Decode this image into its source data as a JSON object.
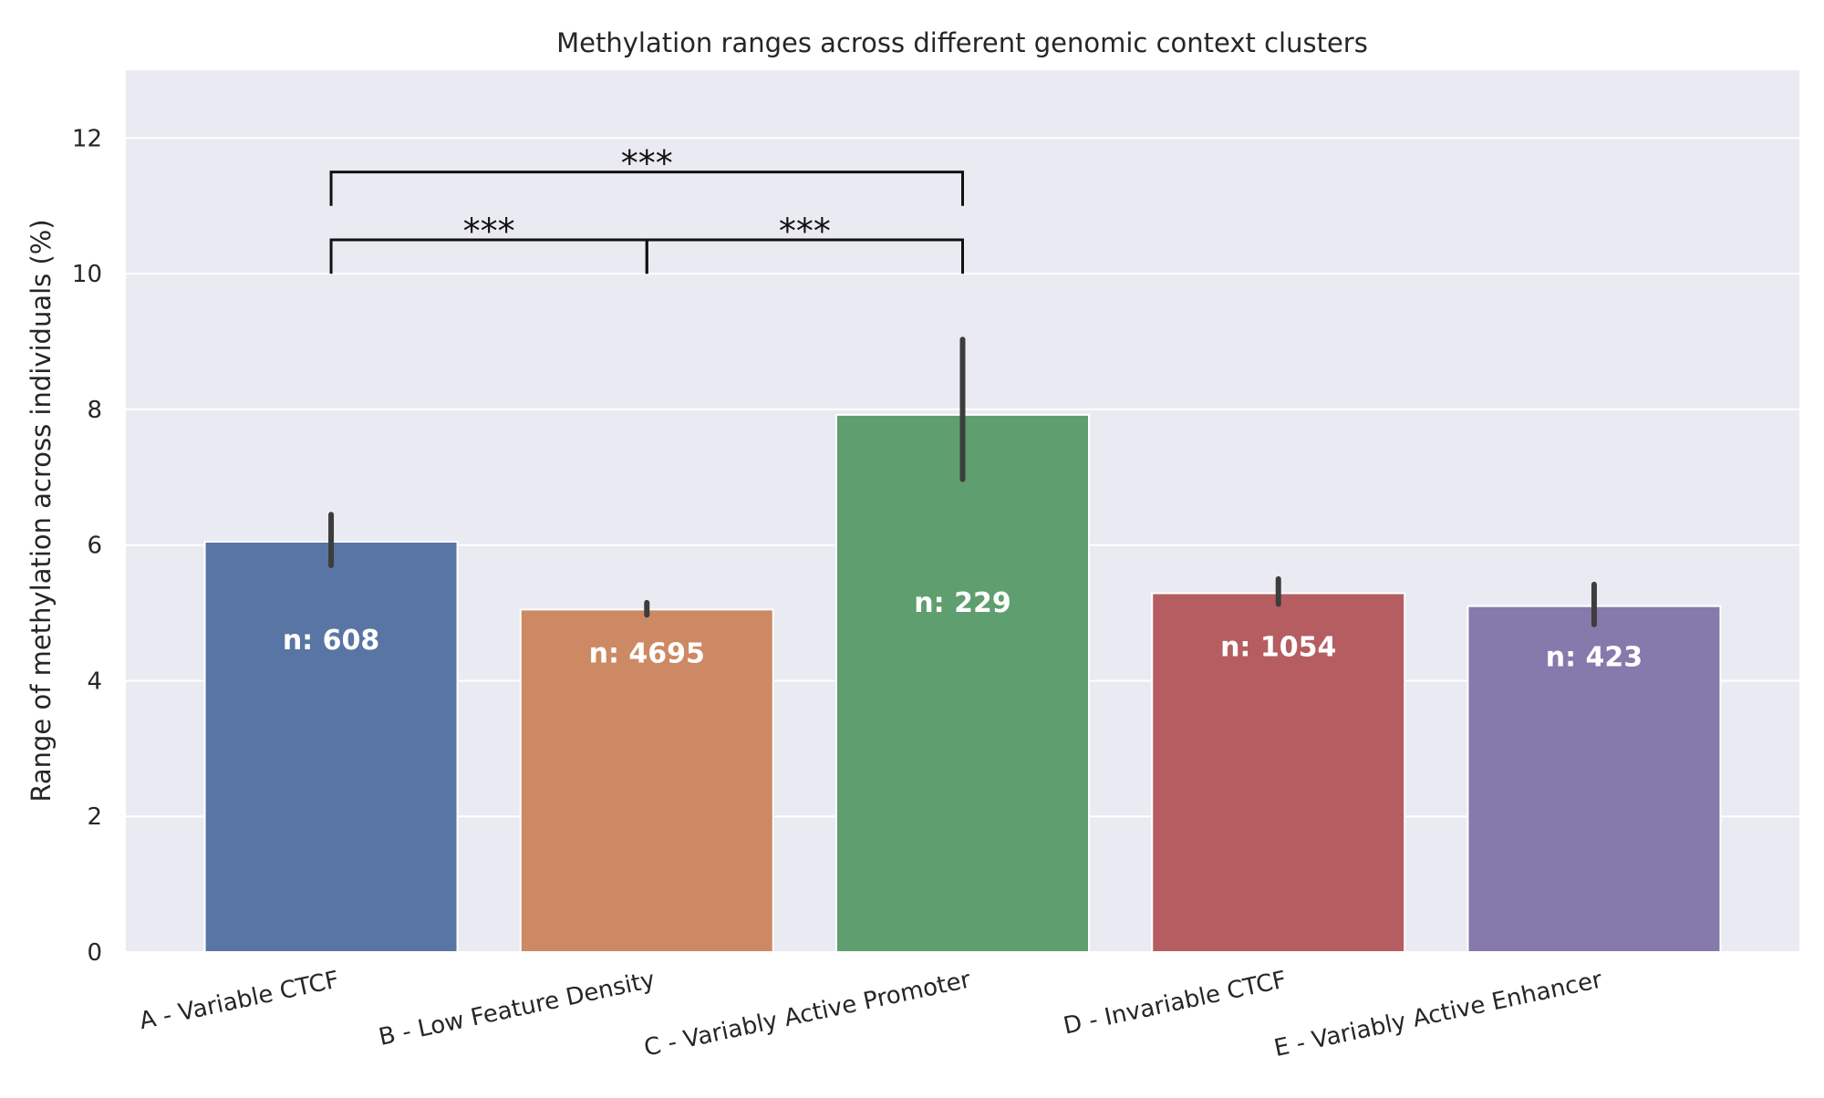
{
  "chart_data": {
    "type": "bar",
    "title": "Methylation ranges across different genomic context clusters",
    "xlabel": "",
    "ylabel": "Range of methylation across individuals (%)",
    "ylim": [
      0,
      13
    ],
    "yticks": [
      0,
      2,
      4,
      6,
      8,
      10,
      12
    ],
    "grid": true,
    "categories": [
      "A - Variable CTCF",
      "B - Low Feature Density",
      "C - Variably Active Promoter",
      "D - Invariable CTCF",
      "E - Variably Active Enhancer"
    ],
    "values": [
      6.05,
      5.05,
      7.92,
      5.29,
      5.1
    ],
    "error_bars": [
      [
        5.7,
        6.45
      ],
      [
        4.97,
        5.15
      ],
      [
        6.97,
        9.03
      ],
      [
        5.13,
        5.5
      ],
      [
        4.83,
        5.42
      ]
    ],
    "count_labels": [
      "n: 608",
      "n: 4695",
      "n: 229",
      "n: 1054",
      "n: 423"
    ],
    "count_label_y": [
      4.6,
      4.4,
      5.15,
      4.5,
      4.35
    ],
    "colors": [
      "#5975a4",
      "#cc8963",
      "#5f9e6e",
      "#b55d60",
      "#857aab"
    ],
    "significance": [
      {
        "from": 0,
        "to": 1,
        "y": 10.5,
        "label": "***"
      },
      {
        "from": 1,
        "to": 2,
        "y": 10.5,
        "label": "***"
      },
      {
        "from": 0,
        "to": 2,
        "y": 11.5,
        "label": "***"
      }
    ],
    "colors_theme": {
      "plot_background": "#eaeaf2",
      "gridline": "#ffffff",
      "error_bar": "#3d3d3d",
      "bracket": "#111111"
    }
  }
}
